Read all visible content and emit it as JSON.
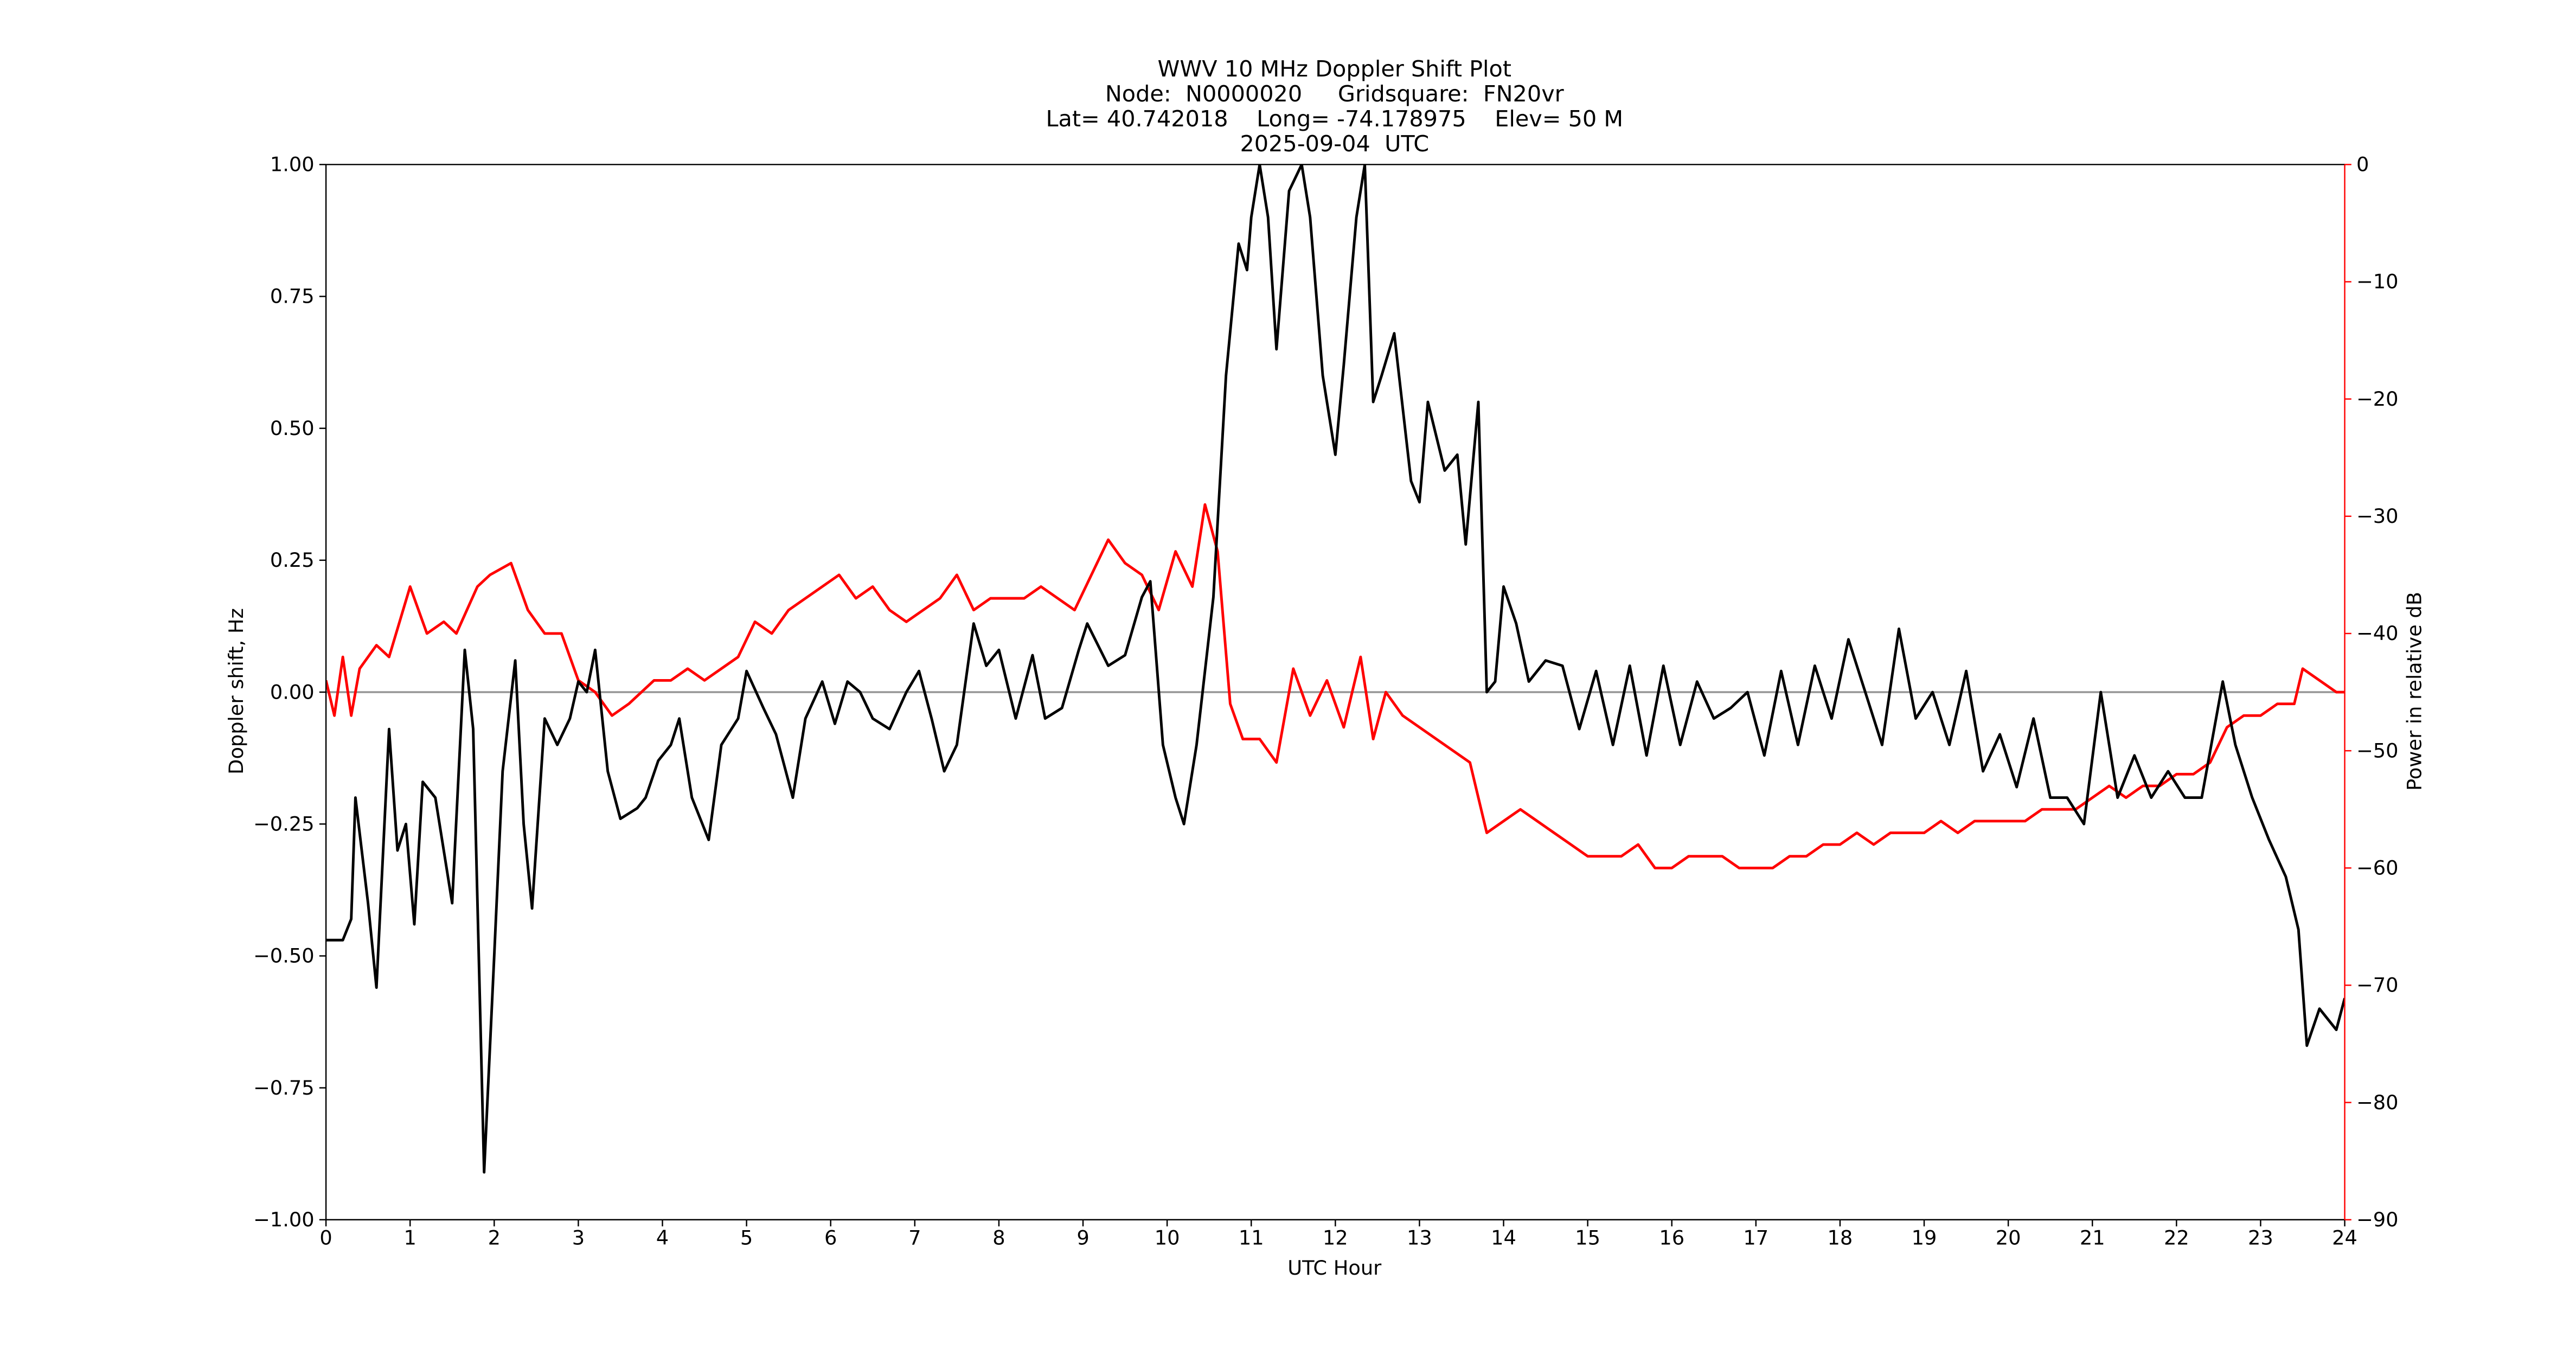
{
  "chart_data": {
    "type": "line",
    "title": [
      "WWV 10 MHz Doppler Shift Plot",
      "Node:  N0000020     Gridsquare:  FN20vr",
      "Lat= 40.742018    Long= -74.178975    Elev= 50 M",
      "2025-09-04  UTC"
    ],
    "xlabel": "UTC Hour",
    "ylabel": "Doppler shift, Hz",
    "y2label": "Power in relative dB",
    "y2color": "#ff0000",
    "xlim": [
      0,
      24
    ],
    "xticks": [
      0,
      1,
      2,
      3,
      4,
      5,
      6,
      7,
      8,
      9,
      10,
      11,
      12,
      13,
      14,
      15,
      16,
      17,
      18,
      19,
      20,
      21,
      22,
      23,
      24
    ],
    "ylim": [
      -1,
      1
    ],
    "yticks": [
      {
        "value": -1,
        "label": "−1.00"
      },
      {
        "value": -0.75,
        "label": "−0.75"
      },
      {
        "value": -0.5,
        "label": "−0.50"
      },
      {
        "value": -0.25,
        "label": "−0.25"
      },
      {
        "value": 0,
        "label": "0.00"
      },
      {
        "value": 0.25,
        "label": "0.25"
      },
      {
        "value": 0.5,
        "label": "0.50"
      },
      {
        "value": 0.75,
        "label": "0.75"
      },
      {
        "value": 1,
        "label": "1.00"
      }
    ],
    "y2lim": [
      -90,
      0
    ],
    "y2ticks": [
      {
        "value": -90,
        "label": "−90"
      },
      {
        "value": -80,
        "label": "−80"
      },
      {
        "value": -70,
        "label": "−70"
      },
      {
        "value": -60,
        "label": "−60"
      },
      {
        "value": -50,
        "label": "−50"
      },
      {
        "value": -40,
        "label": "−40"
      },
      {
        "value": -30,
        "label": "−30"
      },
      {
        "value": -20,
        "label": "−20"
      },
      {
        "value": -10,
        "label": "−10"
      },
      0
    ],
    "reference_line": 0,
    "reference_color": "#999999",
    "series": [
      {
        "color": "#000000",
        "x": [
          0,
          0.2,
          0.3,
          0.35,
          0.5,
          0.6,
          0.75,
          0.85,
          0.95,
          1.05,
          1.15,
          1.3,
          1.4,
          1.5,
          1.65,
          1.75,
          1.88,
          2.0,
          2.1,
          2.25,
          2.35,
          2.45,
          2.6,
          2.75,
          2.9,
          3.0,
          3.1,
          3.2,
          3.35,
          3.5,
          3.7,
          3.8,
          3.95,
          4.1,
          4.2,
          4.35,
          4.55,
          4.7,
          4.9,
          5.0,
          5.2,
          5.35,
          5.55,
          5.7,
          5.9,
          6.05,
          6.2,
          6.35,
          6.5,
          6.7,
          6.9,
          7.05,
          7.2,
          7.35,
          7.5,
          7.7,
          7.85,
          8.0,
          8.2,
          8.4,
          8.55,
          8.75,
          8.95,
          9.05,
          9.3,
          9.5,
          9.7,
          9.8,
          9.95,
          10.1,
          10.2,
          10.35,
          10.55,
          10.7,
          10.85,
          10.95,
          11.0,
          11.1,
          11.2,
          11.3,
          11.45,
          11.6,
          11.7,
          11.85,
          12.0,
          12.1,
          12.25,
          12.35,
          12.45,
          12.55,
          12.7,
          12.9,
          13.0,
          13.1,
          13.3,
          13.45,
          13.55,
          13.7,
          13.8,
          13.9,
          14.0,
          14.15,
          14.3,
          14.5,
          14.7,
          14.9,
          15.1,
          15.3,
          15.5,
          15.7,
          15.9,
          16.1,
          16.3,
          16.5,
          16.7,
          16.9,
          17.1,
          17.3,
          17.5,
          17.7,
          17.9,
          18.1,
          18.3,
          18.5,
          18.7,
          18.9,
          19.1,
          19.3,
          19.5,
          19.7,
          19.9,
          20.1,
          20.3,
          20.5,
          20.7,
          20.9,
          21.1,
          21.3,
          21.5,
          21.7,
          21.9,
          22.1,
          22.3,
          22.55,
          22.7,
          22.9,
          23.1,
          23.3,
          23.45,
          23.55,
          23.7,
          23.9,
          24.0
        ],
        "values": [
          -0.47,
          -0.47,
          -0.43,
          -0.2,
          -0.4,
          -0.56,
          -0.07,
          -0.3,
          -0.25,
          -0.44,
          -0.17,
          -0.2,
          -0.3,
          -0.4,
          0.08,
          -0.07,
          -0.91,
          -0.5,
          -0.15,
          0.06,
          -0.25,
          -0.41,
          -0.05,
          -0.1,
          -0.05,
          0.02,
          0.0,
          0.08,
          -0.15,
          -0.24,
          -0.22,
          -0.2,
          -0.13,
          -0.1,
          -0.05,
          -0.2,
          -0.28,
          -0.1,
          -0.05,
          0.04,
          -0.03,
          -0.08,
          -0.2,
          -0.05,
          0.02,
          -0.06,
          0.02,
          0.0,
          -0.05,
          -0.07,
          0.0,
          0.04,
          -0.05,
          -0.15,
          -0.1,
          0.13,
          0.05,
          0.08,
          -0.05,
          0.07,
          -0.05,
          -0.03,
          0.08,
          0.13,
          0.05,
          0.07,
          0.18,
          0.21,
          -0.1,
          -0.2,
          -0.25,
          -0.1,
          0.18,
          0.6,
          0.85,
          0.8,
          0.9,
          1.0,
          0.9,
          0.65,
          0.95,
          1.0,
          0.9,
          0.6,
          0.45,
          0.62,
          0.9,
          1.0,
          0.55,
          0.6,
          0.68,
          0.4,
          0.36,
          0.55,
          0.42,
          0.45,
          0.28,
          0.55,
          0.0,
          0.02,
          0.2,
          0.13,
          0.02,
          0.06,
          0.05,
          -0.07,
          0.04,
          -0.1,
          0.05,
          -0.12,
          0.05,
          -0.1,
          0.02,
          -0.05,
          -0.03,
          0.0,
          -0.12,
          0.04,
          -0.1,
          0.05,
          -0.05,
          0.1,
          0.0,
          -0.1,
          0.12,
          -0.05,
          0.0,
          -0.1,
          0.04,
          -0.15,
          -0.08,
          -0.18,
          -0.05,
          -0.2,
          -0.2,
          -0.25,
          0.0,
          -0.2,
          -0.12,
          -0.2,
          -0.15,
          -0.2,
          -0.2,
          0.02,
          -0.1,
          -0.2,
          -0.28,
          -0.35,
          -0.45,
          -0.67,
          -0.6,
          -0.64,
          -0.58
        ]
      },
      {
        "color": "#ff0000",
        "axis": "y2",
        "x": [
          0,
          0.1,
          0.2,
          0.3,
          0.4,
          0.6,
          0.75,
          1.0,
          1.2,
          1.4,
          1.55,
          1.8,
          1.95,
          2.2,
          2.4,
          2.6,
          2.8,
          3.0,
          3.2,
          3.4,
          3.6,
          3.9,
          4.1,
          4.3,
          4.5,
          4.7,
          4.9,
          5.1,
          5.3,
          5.5,
          5.7,
          5.9,
          6.1,
          6.3,
          6.5,
          6.7,
          6.9,
          7.1,
          7.3,
          7.5,
          7.7,
          7.9,
          8.1,
          8.3,
          8.5,
          8.7,
          8.9,
          9.1,
          9.3,
          9.5,
          9.7,
          9.9,
          10.1,
          10.3,
          10.45,
          10.6,
          10.75,
          10.9,
          11.1,
          11.3,
          11.5,
          11.7,
          11.9,
          12.1,
          12.3,
          12.45,
          12.6,
          12.8,
          13.0,
          13.2,
          13.4,
          13.6,
          13.8,
          14.0,
          14.2,
          14.4,
          14.6,
          14.8,
          15.0,
          15.2,
          15.4,
          15.6,
          15.8,
          16.0,
          16.2,
          16.4,
          16.6,
          16.8,
          17.0,
          17.2,
          17.4,
          17.6,
          17.8,
          18.0,
          18.2,
          18.4,
          18.6,
          18.8,
          19.0,
          19.2,
          19.4,
          19.6,
          19.8,
          20.0,
          20.2,
          20.4,
          20.6,
          20.8,
          21.0,
          21.2,
          21.4,
          21.6,
          21.8,
          22.0,
          22.2,
          22.4,
          22.6,
          22.8,
          23.0,
          23.2,
          23.4,
          23.5,
          23.7,
          23.9,
          24.0
        ],
        "values": [
          -44,
          -47,
          -42,
          -47,
          -43,
          -41,
          -42,
          -36,
          -40,
          -39,
          -40,
          -36,
          -35,
          -34,
          -38,
          -40,
          -40,
          -44,
          -45,
          -47,
          -46,
          -44,
          -44,
          -43,
          -44,
          -43,
          -42,
          -39,
          -40,
          -38,
          -37,
          -36,
          -35,
          -37,
          -36,
          -38,
          -39,
          -38,
          -37,
          -35,
          -38,
          -37,
          -37,
          -37,
          -36,
          -37,
          -38,
          -35,
          -32,
          -34,
          -35,
          -38,
          -33,
          -36,
          -29,
          -33,
          -46,
          -49,
          -49,
          -51,
          -43,
          -47,
          -44,
          -48,
          -42,
          -49,
          -45,
          -47,
          -48,
          -49,
          -50,
          -51,
          -57,
          -56,
          -55,
          -56,
          -57,
          -58,
          -59,
          -59,
          -59,
          -58,
          -60,
          -60,
          -59,
          -59,
          -59,
          -60,
          -60,
          -60,
          -59,
          -59,
          -58,
          -58,
          -57,
          -58,
          -57,
          -57,
          -57,
          -56,
          -57,
          -56,
          -56,
          -56,
          -56,
          -55,
          -55,
          -55,
          -54,
          -53,
          -54,
          -53,
          -53,
          -52,
          -52,
          -51,
          -48,
          -47,
          -47,
          -46,
          -46,
          -43,
          -44,
          -45,
          -45
        ]
      }
    ]
  }
}
